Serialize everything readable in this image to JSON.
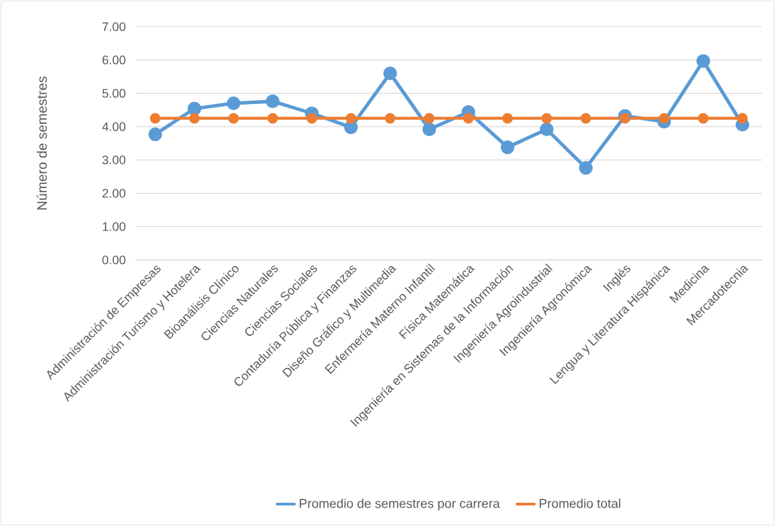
{
  "chart_data": {
    "type": "line",
    "ylabel": "Número de semestres",
    "categories": [
      "Administración de Empresas",
      "Administración Turismo y Hotelera",
      "Bioanálisis Clínico",
      "Ciencias Naturales",
      "Ciencias Sociales",
      "Contaduría Pública y Finanzas",
      "Diseño Gráfico y Multimedia",
      "Enfermería Materno Infantil",
      "Física Matemática",
      "Ingeniería en Sistemas de la Información",
      "Ingeniería Agroindustrial",
      "Ingeniería Agronómica",
      "Inglés",
      "Lengua y Literatura Hispánica",
      "Medicina",
      "Mercadotecnia"
    ],
    "series": [
      {
        "name": "Promedio de semestres por carrera",
        "color": "#5b9bd5",
        "values": [
          3.77,
          4.54,
          4.7,
          4.76,
          4.4,
          3.98,
          5.6,
          3.92,
          4.44,
          3.38,
          3.92,
          2.76,
          4.32,
          4.15,
          5.97,
          4.06
        ]
      },
      {
        "name": "Promedio total",
        "color": "#ed7d31",
        "values": [
          4.25,
          4.25,
          4.25,
          4.25,
          4.25,
          4.25,
          4.25,
          4.25,
          4.25,
          4.25,
          4.25,
          4.25,
          4.25,
          4.25,
          4.25,
          4.25
        ]
      }
    ],
    "ylim": [
      0,
      7
    ],
    "yticks": [
      {
        "value": 0,
        "label": "0.00"
      },
      {
        "value": 1,
        "label": "1.00"
      },
      {
        "value": 2,
        "label": "2.00"
      },
      {
        "value": 3,
        "label": "3.00"
      },
      {
        "value": 4,
        "label": "4.00"
      },
      {
        "value": 5,
        "label": "5.00"
      },
      {
        "value": 6,
        "label": "6.00"
      },
      {
        "value": 7,
        "label": "7.00"
      }
    ],
    "grid": "y",
    "legend": "bottom",
    "marker": "circle",
    "line_style": "solid"
  }
}
